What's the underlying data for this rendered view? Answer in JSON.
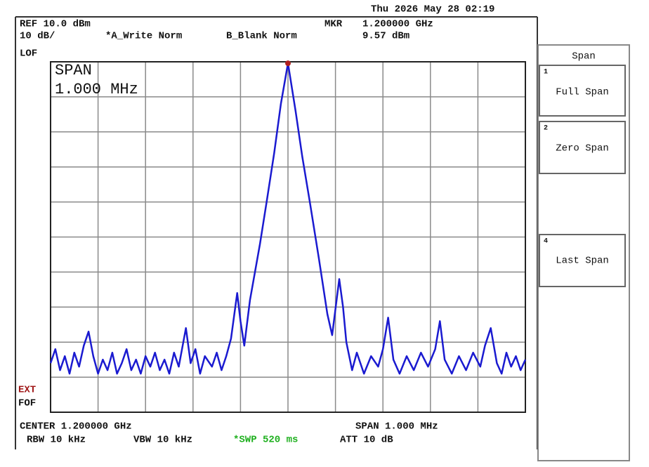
{
  "status": {
    "datetime": "Thu 2026 May 28 02:19",
    "ref": "REF 10.0 dBm",
    "scale": "10 dB/",
    "trace_a": "*A_Write Norm",
    "trace_b": "B_Blank Norm",
    "mkr_label": "MKR",
    "mkr_freq": "1.200000 GHz",
    "mkr_level": "9.57 dBm",
    "lof": "LOF",
    "ext": "EXT",
    "fof": "FOF"
  },
  "annotation": {
    "line1": "SPAN",
    "line2": "1.000 MHz"
  },
  "footer": {
    "center": "CENTER 1.200000 GHz",
    "span": "SPAN 1.000 MHz",
    "rbw": "RBW 10 kHz",
    "vbw": "VBW 10 kHz",
    "swp": "*SWP 520 ms",
    "att": "ATT 10 dB"
  },
  "menu": {
    "title": "Span",
    "keys": [
      {
        "number": "1",
        "label": "Full Span"
      },
      {
        "number": "2",
        "label": "Zero Span"
      },
      {
        "number": "4",
        "label": "Last Span"
      }
    ]
  },
  "trace": {
    "color": "#1a1ad0",
    "marker_color": "#b02020",
    "xlim": [
      -500,
      500
    ],
    "ylim": [
      -90,
      10
    ],
    "xticks": [
      -500,
      -400,
      -300,
      -200,
      -100,
      0,
      100,
      200,
      300,
      400,
      500
    ],
    "yticks": [
      -90,
      -80,
      -70,
      -60,
      -50,
      -40,
      -30,
      -20,
      -10,
      0,
      10
    ],
    "x": [
      -500,
      -490,
      -480,
      -470,
      -460,
      -450,
      -440,
      -430,
      -420,
      -410,
      -400,
      -390,
      -380,
      -370,
      -360,
      -350,
      -340,
      -330,
      -320,
      -310,
      -300,
      -290,
      -280,
      -270,
      -260,
      -250,
      -240,
      -230,
      -215,
      -205,
      -195,
      -185,
      -175,
      -160,
      -150,
      -140,
      -130,
      -120,
      -107,
      -100,
      -92,
      -80,
      -59,
      -45,
      -29,
      -15,
      0,
      16,
      30,
      46,
      65,
      83,
      93,
      108,
      116,
      123,
      135,
      145,
      160,
      175,
      190,
      200,
      211,
      222,
      235,
      250,
      265,
      280,
      295,
      310,
      320,
      330,
      345,
      360,
      375,
      390,
      405,
      415,
      427,
      440,
      450,
      460,
      470,
      480,
      490,
      500
    ],
    "values": [
      -76,
      -72,
      -78,
      -74,
      -79,
      -73,
      -77,
      -71,
      -67,
      -74,
      -79,
      -75,
      -78,
      -73,
      -79,
      -76,
      -72,
      -78,
      -75,
      -79,
      -74,
      -77,
      -73,
      -78,
      -75,
      -79,
      -73,
      -77,
      -66,
      -76,
      -72,
      -79,
      -74,
      -77,
      -73,
      -78,
      -74,
      -69,
      -56,
      -64,
      -71,
      -58,
      -42,
      -30,
      -16,
      -2,
      9.57,
      -4,
      -17,
      -30,
      -46,
      -62,
      -68,
      -52,
      -60,
      -70,
      -78,
      -73,
      -79,
      -74,
      -77,
      -72,
      -63,
      -75,
      -79,
      -74,
      -78,
      -73,
      -77,
      -72,
      -64,
      -75,
      -79,
      -74,
      -78,
      -73,
      -77,
      -71,
      -66,
      -76,
      -79,
      -73,
      -77,
      -74,
      -78,
      -75
    ]
  }
}
